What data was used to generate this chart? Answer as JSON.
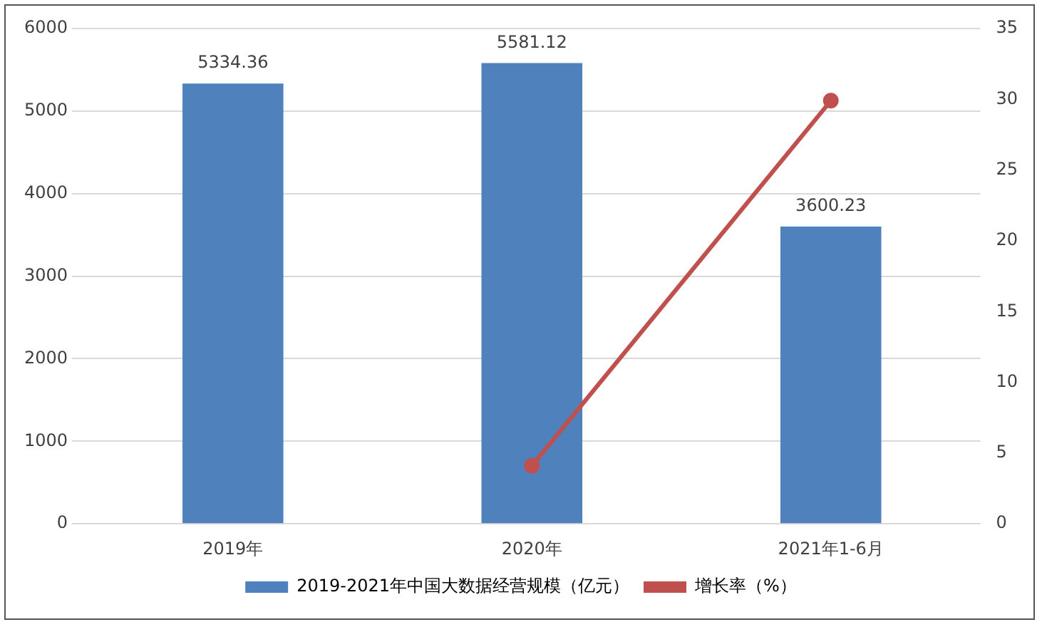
{
  "chart_data": {
    "type": "bar",
    "categories": [
      "2019年",
      "2020年",
      "2021年1-6月"
    ],
    "series": [
      {
        "name": "2019-2021年中国大数据经营规模（亿元）",
        "color": "#4f81bd",
        "values": [
          5334.36,
          5581.12,
          3600.23
        ],
        "value_labels": [
          "5334.36",
          "5581.12",
          "3600.23"
        ]
      },
      {
        "name": "增长率（%）",
        "type": "line",
        "axis": "y2",
        "color": "#c0504d",
        "values": [
          null,
          4.1,
          29.9
        ]
      }
    ],
    "ylim": [
      0,
      6000
    ],
    "yticks": [
      0,
      1000,
      2000,
      3000,
      4000,
      5000,
      6000
    ],
    "y2lim": [
      0,
      35
    ],
    "y2ticks": [
      0,
      5,
      10,
      15,
      20,
      25,
      30,
      35
    ],
    "grid": "y",
    "legend": "bottom",
    "marker": "circle"
  }
}
